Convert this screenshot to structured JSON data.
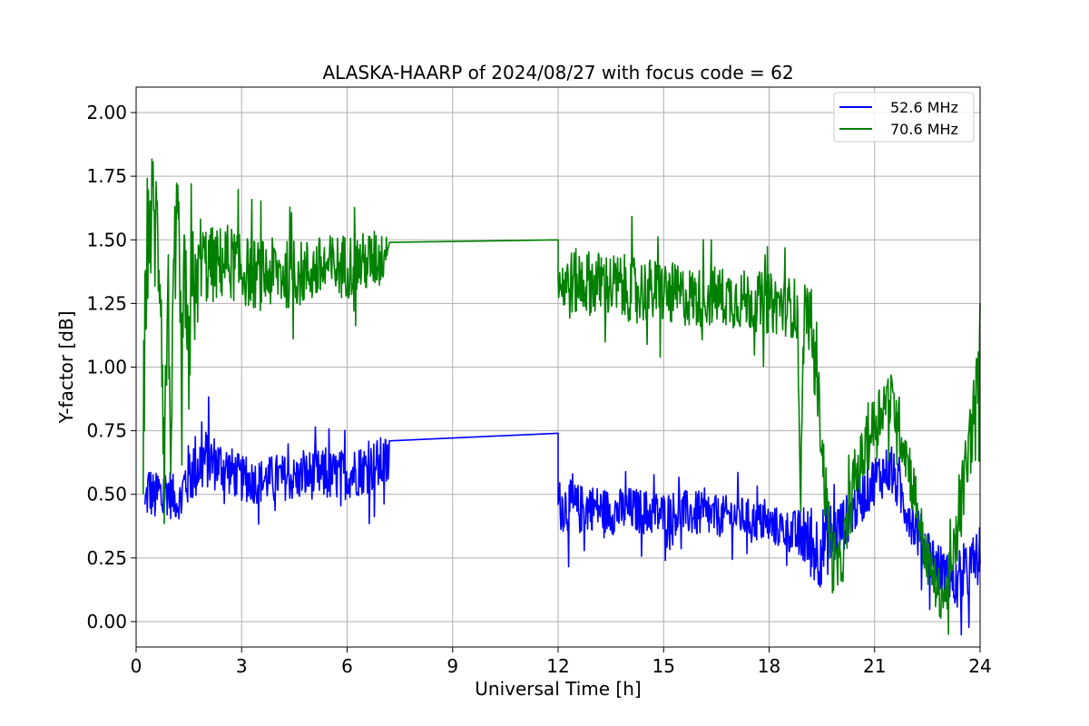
{
  "chart_data": {
    "type": "line",
    "title": "ALASKA-HAARP of 2024/08/27 with focus code = 62",
    "xlabel": "Universal Time [h]",
    "ylabel": "Y-factor [dB]",
    "xlim": [
      0,
      24
    ],
    "ylim": [
      -0.1,
      2.1
    ],
    "xticks": [
      0,
      3,
      6,
      9,
      12,
      15,
      18,
      21,
      24
    ],
    "xtick_labels": [
      "0",
      "3",
      "6",
      "9",
      "12",
      "15",
      "18",
      "21",
      "24"
    ],
    "yticks": [
      0.0,
      0.25,
      0.5,
      0.75,
      1.0,
      1.25,
      1.5,
      1.75,
      2.0
    ],
    "ytick_labels": [
      "0.00",
      "0.25",
      "0.50",
      "0.75",
      "1.00",
      "1.25",
      "1.50",
      "1.75",
      "2.00"
    ],
    "grid": true,
    "legend_position": "top-right",
    "series": [
      {
        "name": "52.6 MHz",
        "color": "#0000ff",
        "x": [
          0.25,
          0.35,
          0.45,
          0.55,
          0.65,
          0.75,
          0.85,
          1.0,
          1.2,
          1.4,
          1.6,
          1.8,
          2.0,
          2.3,
          2.6,
          3.0,
          3.5,
          4.0,
          4.5,
          5.0,
          5.5,
          6.0,
          6.5,
          7.0,
          7.2,
          12.0,
          12.0,
          12.3,
          12.6,
          13.0,
          13.5,
          14.0,
          14.5,
          15.0,
          15.5,
          16.0,
          16.5,
          17.0,
          17.5,
          18.0,
          18.5,
          18.8,
          19.0,
          19.2,
          19.4,
          19.6,
          19.8,
          20.0,
          20.2,
          20.4,
          20.6,
          20.8,
          21.0,
          21.2,
          21.4,
          21.6,
          21.8,
          22.0,
          22.2,
          22.4,
          22.6,
          22.8,
          23.0,
          23.2,
          23.4,
          23.6,
          23.8,
          24.0
        ],
        "y": [
          0.46,
          0.52,
          0.5,
          0.48,
          0.51,
          0.47,
          0.52,
          0.5,
          0.46,
          0.55,
          0.6,
          0.62,
          0.64,
          0.62,
          0.6,
          0.56,
          0.55,
          0.57,
          0.56,
          0.58,
          0.57,
          0.58,
          0.6,
          0.62,
          0.62,
          0.74,
          0.46,
          0.45,
          0.44,
          0.45,
          0.43,
          0.44,
          0.43,
          0.42,
          0.43,
          0.42,
          0.41,
          0.42,
          0.4,
          0.38,
          0.36,
          0.34,
          0.33,
          0.3,
          0.28,
          0.32,
          0.34,
          0.36,
          0.4,
          0.44,
          0.48,
          0.52,
          0.56,
          0.58,
          0.6,
          0.55,
          0.48,
          0.42,
          0.36,
          0.3,
          0.26,
          0.22,
          0.18,
          0.15,
          0.14,
          0.18,
          0.22,
          0.26
        ],
        "spread": [
          0.08,
          0.12,
          0.1,
          0.1,
          0.12,
          0.1,
          0.1,
          0.1,
          0.06,
          0.12,
          0.14,
          0.14,
          0.12,
          0.11,
          0.1,
          0.09,
          0.09,
          0.09,
          0.09,
          0.1,
          0.1,
          0.1,
          0.1,
          0.11,
          0.11,
          0.0,
          0.1,
          0.11,
          0.1,
          0.09,
          0.09,
          0.09,
          0.09,
          0.09,
          0.09,
          0.09,
          0.08,
          0.08,
          0.08,
          0.08,
          0.08,
          0.1,
          0.12,
          0.14,
          0.16,
          0.15,
          0.14,
          0.12,
          0.1,
          0.1,
          0.1,
          0.1,
          0.1,
          0.1,
          0.1,
          0.1,
          0.1,
          0.1,
          0.1,
          0.1,
          0.1,
          0.1,
          0.1,
          0.1,
          0.1,
          0.12,
          0.12,
          0.12
        ]
      },
      {
        "name": "70.6 MHz",
        "color": "#008000",
        "x": [
          0.2,
          0.3,
          0.4,
          0.5,
          0.6,
          0.7,
          0.8,
          0.9,
          1.0,
          1.1,
          1.2,
          1.3,
          1.4,
          1.5,
          1.6,
          1.7,
          1.8,
          1.9,
          2.0,
          2.3,
          2.6,
          3.0,
          3.5,
          4.0,
          4.5,
          5.0,
          5.5,
          6.0,
          6.5,
          7.0,
          7.2,
          12.0,
          12.0,
          12.3,
          12.6,
          13.0,
          13.5,
          14.0,
          14.5,
          15.0,
          15.5,
          16.0,
          16.5,
          17.0,
          17.5,
          18.0,
          18.5,
          18.8,
          18.9,
          19.0,
          19.1,
          19.2,
          19.4,
          19.6,
          19.8,
          20.0,
          20.2,
          20.4,
          20.6,
          20.8,
          21.0,
          21.2,
          21.4,
          21.6,
          21.8,
          22.0,
          22.2,
          22.4,
          22.6,
          22.8,
          23.0,
          23.2,
          23.4,
          23.6,
          23.8,
          24.0
        ],
        "y": [
          0.5,
          1.5,
          1.55,
          1.6,
          1.5,
          1.4,
          0.6,
          1.3,
          0.7,
          1.4,
          1.45,
          0.9,
          1.4,
          0.8,
          1.5,
          1.2,
          1.45,
          1.42,
          1.4,
          1.4,
          1.42,
          1.38,
          1.36,
          1.37,
          1.36,
          1.38,
          1.39,
          1.4,
          1.41,
          1.43,
          1.49,
          1.5,
          1.35,
          1.32,
          1.34,
          1.33,
          1.32,
          1.31,
          1.3,
          1.29,
          1.28,
          1.27,
          1.28,
          1.27,
          1.26,
          1.25,
          1.24,
          1.23,
          0.5,
          1.25,
          1.2,
          1.15,
          0.9,
          0.5,
          0.25,
          0.2,
          0.35,
          0.55,
          0.62,
          0.7,
          0.78,
          0.85,
          0.88,
          0.82,
          0.72,
          0.6,
          0.45,
          0.3,
          0.2,
          0.12,
          0.1,
          0.2,
          0.4,
          0.6,
          0.8,
          1.0
        ],
        "spread": [
          0.2,
          0.25,
          0.25,
          0.3,
          0.3,
          0.3,
          0.25,
          0.3,
          0.25,
          0.3,
          0.3,
          0.3,
          0.3,
          0.3,
          0.3,
          0.2,
          0.17,
          0.16,
          0.16,
          0.15,
          0.15,
          0.14,
          0.14,
          0.14,
          0.13,
          0.13,
          0.13,
          0.13,
          0.12,
          0.12,
          0.0,
          0.0,
          0.13,
          0.14,
          0.13,
          0.13,
          0.13,
          0.13,
          0.13,
          0.13,
          0.12,
          0.12,
          0.12,
          0.12,
          0.12,
          0.12,
          0.12,
          0.12,
          0.1,
          0.12,
          0.12,
          0.12,
          0.12,
          0.14,
          0.14,
          0.12,
          0.12,
          0.12,
          0.12,
          0.12,
          0.12,
          0.12,
          0.12,
          0.12,
          0.12,
          0.12,
          0.12,
          0.1,
          0.1,
          0.1,
          0.1,
          0.12,
          0.14,
          0.16,
          0.16,
          0.16
        ]
      }
    ]
  }
}
